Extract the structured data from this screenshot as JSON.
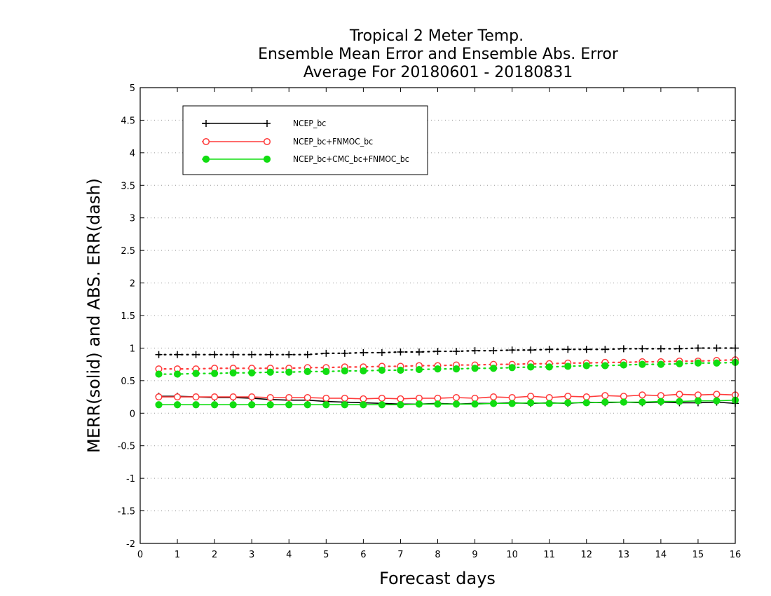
{
  "chart_data": {
    "type": "line",
    "title_lines": [
      "Tropical 2 Meter Temp.",
      "Ensemble Mean Error and Ensemble Abs. Error",
      "Average For 20180601 - 20180831"
    ],
    "xlabel": "Forecast days",
    "ylabel": "MERR(solid) and ABS. ERR(dash)",
    "xlim": [
      0,
      16
    ],
    "ylim": [
      -2,
      5
    ],
    "xticks": [
      "0",
      "1",
      "2",
      "3",
      "4",
      "5",
      "6",
      "7",
      "8",
      "9",
      "10",
      "11",
      "12",
      "13",
      "14",
      "15",
      "16"
    ],
    "yticks": [
      "-2",
      "-1.5",
      "-1",
      "-0.5",
      "0",
      "0.5",
      "1",
      "1.5",
      "2",
      "2.5",
      "3",
      "3.5",
      "4",
      "4.5",
      "5"
    ],
    "grid": true,
    "legend_position": "top-left",
    "x": [
      0.5,
      1,
      1.5,
      2,
      2.5,
      3,
      3.5,
      4,
      4.5,
      5,
      5.5,
      6,
      6.5,
      7,
      7.5,
      8,
      8.5,
      9,
      9.5,
      10,
      10.5,
      11,
      11.5,
      12,
      12.5,
      13,
      13.5,
      14,
      14.5,
      15,
      15.5,
      16
    ],
    "series": [
      {
        "name": "NCEP_bc",
        "color": "#000000",
        "marker": "plus",
        "merr": [
          0.26,
          0.26,
          0.25,
          0.24,
          0.24,
          0.23,
          0.21,
          0.2,
          0.2,
          0.18,
          0.17,
          0.16,
          0.15,
          0.14,
          0.14,
          0.15,
          0.14,
          0.15,
          0.15,
          0.16,
          0.15,
          0.16,
          0.15,
          0.17,
          0.16,
          0.17,
          0.16,
          0.17,
          0.16,
          0.16,
          0.17,
          0.15
        ],
        "abs_err": [
          0.9,
          0.9,
          0.9,
          0.9,
          0.9,
          0.9,
          0.9,
          0.9,
          0.9,
          0.92,
          0.92,
          0.93,
          0.93,
          0.94,
          0.94,
          0.95,
          0.95,
          0.96,
          0.96,
          0.97,
          0.97,
          0.98,
          0.98,
          0.98,
          0.98,
          0.99,
          0.99,
          0.99,
          0.99,
          1.0,
          1.0,
          1.0
        ]
      },
      {
        "name": "NCEP_bc+FNMOC_bc",
        "color": "#ff3b3b",
        "marker": "open-circle",
        "merr": [
          0.25,
          0.25,
          0.25,
          0.25,
          0.25,
          0.25,
          0.24,
          0.24,
          0.24,
          0.23,
          0.23,
          0.22,
          0.23,
          0.22,
          0.23,
          0.23,
          0.24,
          0.23,
          0.25,
          0.24,
          0.26,
          0.24,
          0.26,
          0.25,
          0.27,
          0.26,
          0.28,
          0.27,
          0.29,
          0.28,
          0.29,
          0.28
        ],
        "abs_err": [
          0.68,
          0.68,
          0.68,
          0.69,
          0.69,
          0.69,
          0.69,
          0.69,
          0.7,
          0.7,
          0.71,
          0.71,
          0.72,
          0.72,
          0.73,
          0.73,
          0.74,
          0.74,
          0.75,
          0.75,
          0.76,
          0.76,
          0.77,
          0.77,
          0.78,
          0.78,
          0.79,
          0.79,
          0.8,
          0.8,
          0.81,
          0.82
        ]
      },
      {
        "name": "NCEP_bc+CMC_bc+FNMOC_bc",
        "color": "#11dd11",
        "marker": "filled-circle",
        "merr": [
          0.13,
          0.13,
          0.13,
          0.13,
          0.13,
          0.13,
          0.13,
          0.13,
          0.13,
          0.13,
          0.13,
          0.13,
          0.13,
          0.13,
          0.14,
          0.14,
          0.14,
          0.14,
          0.15,
          0.15,
          0.16,
          0.15,
          0.16,
          0.16,
          0.17,
          0.17,
          0.17,
          0.18,
          0.18,
          0.19,
          0.19,
          0.2
        ],
        "abs_err": [
          0.6,
          0.6,
          0.61,
          0.61,
          0.62,
          0.62,
          0.63,
          0.63,
          0.64,
          0.64,
          0.65,
          0.65,
          0.66,
          0.66,
          0.67,
          0.68,
          0.68,
          0.69,
          0.69,
          0.7,
          0.71,
          0.71,
          0.72,
          0.73,
          0.73,
          0.74,
          0.75,
          0.75,
          0.76,
          0.77,
          0.77,
          0.78
        ]
      }
    ]
  }
}
